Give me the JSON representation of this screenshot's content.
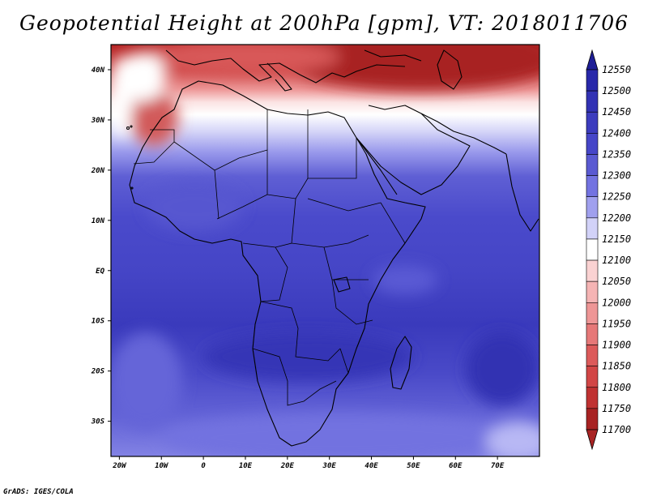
{
  "title": "Geopotential Height at 200hPa [gpm], VT: 2018011706",
  "footer": "GrADS: IGES/COLA",
  "map": {
    "region": "Africa",
    "lon_range": [
      -22,
      80
    ],
    "lat_range": [
      -37,
      45
    ],
    "lon_ticks": [
      {
        "value": -20,
        "label": "20W"
      },
      {
        "value": -10,
        "label": "10W"
      },
      {
        "value": 0,
        "label": "0"
      },
      {
        "value": 10,
        "label": "10E"
      },
      {
        "value": 20,
        "label": "20E"
      },
      {
        "value": 30,
        "label": "30E"
      },
      {
        "value": 40,
        "label": "40E"
      },
      {
        "value": 50,
        "label": "50E"
      },
      {
        "value": 60,
        "label": "60E"
      },
      {
        "value": 70,
        "label": "70E"
      }
    ],
    "lat_ticks": [
      {
        "value": 40,
        "label": "40N"
      },
      {
        "value": 30,
        "label": "30N"
      },
      {
        "value": 20,
        "label": "20N"
      },
      {
        "value": 10,
        "label": "10N"
      },
      {
        "value": 0,
        "label": "EQ"
      },
      {
        "value": -10,
        "label": "10S"
      },
      {
        "value": -20,
        "label": "20S"
      },
      {
        "value": -30,
        "label": "30S"
      }
    ]
  },
  "colorbar": {
    "levels": [
      {
        "label": "12550",
        "color": "#1e1e96"
      },
      {
        "label": "12500",
        "color": "#2828aa"
      },
      {
        "label": "12450",
        "color": "#3232b4"
      },
      {
        "label": "12400",
        "color": "#3c3cbe"
      },
      {
        "label": "12350",
        "color": "#4646c8"
      },
      {
        "label": "12300",
        "color": "#5a5ad2"
      },
      {
        "label": "12250",
        "color": "#7373e1"
      },
      {
        "label": "12200",
        "color": "#a0a0ee"
      },
      {
        "label": "12150",
        "color": "#d2d2f8"
      },
      {
        "label": "12100",
        "color": "#ffffff"
      },
      {
        "label": "12050",
        "color": "#fad2d2"
      },
      {
        "label": "12000",
        "color": "#f5b4b4"
      },
      {
        "label": "11950",
        "color": "#ee9696"
      },
      {
        "label": "11900",
        "color": "#e67878"
      },
      {
        "label": "11850",
        "color": "#dc5a5a"
      },
      {
        "label": "11800",
        "color": "#d24646"
      },
      {
        "label": "11750",
        "color": "#c03232"
      },
      {
        "label": "11700",
        "color": "#a82323"
      }
    ]
  }
}
